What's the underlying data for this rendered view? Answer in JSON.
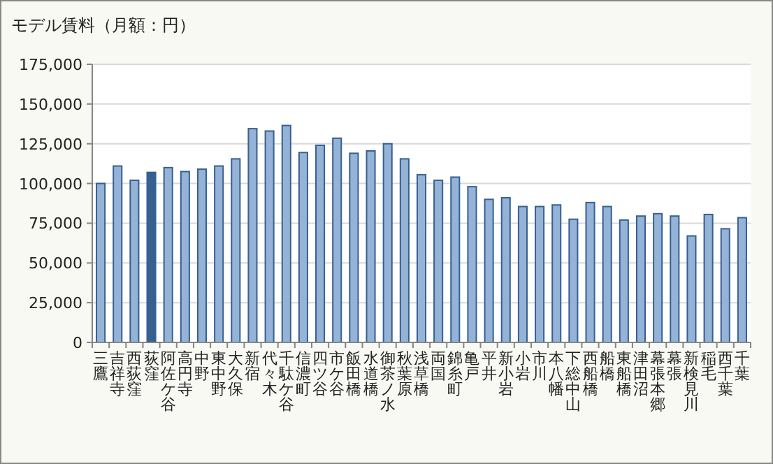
{
  "chart_data": {
    "type": "bar",
    "title": "モデル賃料（月額：円）",
    "categories": [
      "三鷹",
      "吉祥寺",
      "西荻窪",
      "荻窪",
      "阿佐ケ谷",
      "高円寺",
      "中野",
      "東中野",
      "大久保",
      "新宿",
      "代々木",
      "千駄ケ谷",
      "信濃町",
      "四ツ谷",
      "市ケ谷",
      "飯田橋",
      "水道橋",
      "御茶ノ水",
      "秋葉原",
      "浅草橋",
      "両国",
      "錦糸町",
      "亀戸",
      "平井",
      "新小岩",
      "小岩",
      "市川",
      "本八幡",
      "下総中山",
      "西船橋",
      "船橋",
      "東船橋",
      "津田沼",
      "幕張本郷",
      "幕張",
      "新検見川",
      "稲毛",
      "西千葉",
      "千葉"
    ],
    "values": [
      100000,
      111000,
      102000,
      107000,
      110000,
      107500,
      109000,
      111000,
      115500,
      134500,
      133000,
      136500,
      119500,
      124000,
      128500,
      119000,
      120500,
      125000,
      115500,
      105500,
      102000,
      104000,
      98000,
      90000,
      91000,
      85500,
      85500,
      86500,
      77500,
      88000,
      85500,
      77000,
      79500,
      81000,
      79500,
      67000,
      80500,
      71500,
      78500
    ],
    "colors": [
      "#95b3d7",
      "#95b3d7",
      "#95b3d7",
      "#366092",
      "#95b3d7",
      "#95b3d7",
      "#95b3d7",
      "#95b3d7",
      "#95b3d7",
      "#95b3d7",
      "#95b3d7",
      "#95b3d7",
      "#95b3d7",
      "#95b3d7",
      "#95b3d7",
      "#95b3d7",
      "#95b3d7",
      "#95b3d7",
      "#95b3d7",
      "#95b3d7",
      "#95b3d7",
      "#95b3d7",
      "#95b3d7",
      "#95b3d7",
      "#95b3d7",
      "#95b3d7",
      "#95b3d7",
      "#95b3d7",
      "#95b3d7",
      "#95b3d7",
      "#95b3d7",
      "#95b3d7",
      "#95b3d7",
      "#95b3d7",
      "#95b3d7",
      "#95b3d7",
      "#95b3d7",
      "#95b3d7",
      "#95b3d7"
    ],
    "ylim": [
      0,
      175000
    ],
    "yticks": [
      0,
      {
        "value": 25000,
        "label": "25,000"
      },
      {
        "value": 50000,
        "label": "50,000"
      },
      {
        "value": 75000,
        "label": "75,000"
      },
      {
        "value": 100000,
        "label": "100,000"
      },
      {
        "value": 125000,
        "label": "125,000"
      },
      {
        "value": 150000,
        "label": "150,000"
      },
      {
        "value": 175000,
        "label": "175,000"
      }
    ],
    "grid": "y"
  }
}
